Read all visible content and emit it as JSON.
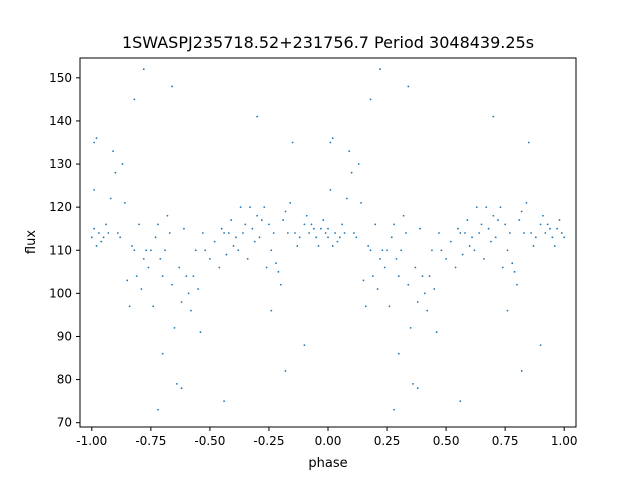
{
  "chart_data": {
    "type": "scatter",
    "title": "1SWASPJ235718.52+231756.7 Period 3048439.25s",
    "xlabel": "phase",
    "ylabel": "flux",
    "xlim": [
      -1.05,
      1.05
    ],
    "ylim": [
      69.0,
      154.6
    ],
    "xticks": [
      "-1.00",
      "-0.75",
      "-0.50",
      "-0.25",
      "0.00",
      "0.25",
      "0.50",
      "0.75",
      "1.00"
    ],
    "xtick_values": [
      -1.0,
      -0.75,
      -0.5,
      -0.25,
      0.0,
      0.25,
      0.5,
      0.75,
      1.0
    ],
    "yticks": [
      "70",
      "80",
      "90",
      "100",
      "110",
      "120",
      "130",
      "140",
      "150"
    ],
    "ytick_values": [
      70,
      80,
      90,
      100,
      110,
      120,
      130,
      140,
      150
    ],
    "grid": false,
    "series": [
      {
        "color": "#1f77b4",
        "points": [
          [
            -1.0,
            113
          ],
          [
            -0.99,
            115
          ],
          [
            -0.99,
            124
          ],
          [
            -0.99,
            135
          ],
          [
            -0.98,
            136
          ],
          [
            -0.98,
            111
          ],
          [
            -0.97,
            114
          ],
          [
            -0.96,
            112
          ],
          [
            -0.95,
            113
          ],
          [
            -0.94,
            116
          ],
          [
            -0.93,
            114
          ],
          [
            -0.92,
            122
          ],
          [
            -0.91,
            133
          ],
          [
            -0.9,
            128
          ],
          [
            -0.89,
            114
          ],
          [
            -0.88,
            113
          ],
          [
            -0.87,
            130
          ],
          [
            -0.86,
            121
          ],
          [
            -0.85,
            103
          ],
          [
            -0.84,
            97
          ],
          [
            -0.83,
            111
          ],
          [
            -0.82,
            110
          ],
          [
            -0.81,
            104
          ],
          [
            -0.8,
            116
          ],
          [
            -0.79,
            101
          ],
          [
            -0.78,
            108
          ],
          [
            -0.77,
            110
          ],
          [
            -0.76,
            106
          ],
          [
            -0.75,
            110
          ],
          [
            -0.74,
            97
          ],
          [
            -0.73,
            113
          ],
          [
            -0.72,
            116
          ],
          [
            -0.71,
            108
          ],
          [
            -0.7,
            104
          ],
          [
            -0.69,
            110
          ],
          [
            -0.68,
            118
          ],
          [
            -0.67,
            114
          ],
          [
            -0.66,
            102
          ],
          [
            -0.65,
            92
          ],
          [
            -0.64,
            79
          ],
          [
            -0.63,
            106
          ],
          [
            -0.62,
            98
          ],
          [
            -0.61,
            115
          ],
          [
            -0.6,
            104
          ],
          [
            -0.59,
            100
          ],
          [
            -0.58,
            96
          ],
          [
            -0.57,
            104
          ],
          [
            -0.56,
            110
          ],
          [
            -0.55,
            101
          ],
          [
            -0.54,
            91
          ],
          [
            -0.53,
            114
          ],
          [
            -0.52,
            110
          ],
          [
            -0.5,
            108
          ],
          [
            -0.48,
            112
          ],
          [
            -0.46,
            106
          ],
          [
            -0.45,
            115
          ],
          [
            -0.44,
            114
          ],
          [
            -0.43,
            109
          ],
          [
            -0.42,
            114
          ],
          [
            -0.41,
            117
          ],
          [
            -0.4,
            111
          ],
          [
            -0.39,
            113
          ],
          [
            -0.38,
            110
          ],
          [
            -0.37,
            120
          ],
          [
            -0.36,
            114
          ],
          [
            -0.35,
            116
          ],
          [
            -0.34,
            108
          ],
          [
            -0.33,
            120
          ],
          [
            -0.32,
            115
          ],
          [
            -0.31,
            112
          ],
          [
            -0.3,
            118
          ],
          [
            -0.29,
            113
          ],
          [
            -0.28,
            117
          ],
          [
            -0.27,
            120
          ],
          [
            -0.26,
            106
          ],
          [
            -0.25,
            116
          ],
          [
            -0.24,
            110
          ],
          [
            -0.23,
            114
          ],
          [
            -0.22,
            107
          ],
          [
            -0.21,
            105
          ],
          [
            -0.2,
            102
          ],
          [
            -0.19,
            117
          ],
          [
            -0.18,
            119
          ],
          [
            -0.17,
            114
          ],
          [
            -0.16,
            121
          ],
          [
            -0.15,
            135
          ],
          [
            -0.14,
            114
          ],
          [
            -0.13,
            111
          ],
          [
            -0.12,
            113
          ],
          [
            -0.1,
            116
          ],
          [
            -0.09,
            118
          ],
          [
            -0.08,
            114
          ],
          [
            -0.07,
            116
          ],
          [
            -0.06,
            115
          ],
          [
            -0.05,
            113
          ],
          [
            -0.04,
            111
          ],
          [
            -0.03,
            115
          ],
          [
            -0.02,
            117
          ],
          [
            -0.01,
            114
          ],
          [
            0.0,
            113
          ],
          [
            0.0,
            115
          ],
          [
            0.01,
            124
          ],
          [
            0.01,
            135
          ],
          [
            0.02,
            136
          ],
          [
            0.02,
            111
          ],
          [
            0.03,
            114
          ],
          [
            0.04,
            112
          ],
          [
            0.05,
            113
          ],
          [
            0.06,
            116
          ],
          [
            0.07,
            114
          ],
          [
            0.08,
            122
          ],
          [
            0.09,
            133
          ],
          [
            0.1,
            128
          ],
          [
            0.11,
            114
          ],
          [
            0.12,
            113
          ],
          [
            0.13,
            130
          ],
          [
            0.14,
            121
          ],
          [
            0.15,
            103
          ],
          [
            0.16,
            97
          ],
          [
            0.17,
            111
          ],
          [
            0.18,
            110
          ],
          [
            0.19,
            104
          ],
          [
            0.2,
            116
          ],
          [
            0.21,
            101
          ],
          [
            0.22,
            108
          ],
          [
            0.23,
            110
          ],
          [
            0.24,
            106
          ],
          [
            0.25,
            110
          ],
          [
            0.26,
            97
          ],
          [
            0.27,
            113
          ],
          [
            0.28,
            116
          ],
          [
            0.29,
            108
          ],
          [
            0.3,
            104
          ],
          [
            0.31,
            110
          ],
          [
            0.32,
            118
          ],
          [
            0.33,
            114
          ],
          [
            0.34,
            102
          ],
          [
            0.35,
            92
          ],
          [
            0.36,
            79
          ],
          [
            0.37,
            106
          ],
          [
            0.38,
            98
          ],
          [
            0.39,
            115
          ],
          [
            0.4,
            104
          ],
          [
            0.41,
            100
          ],
          [
            0.42,
            96
          ],
          [
            0.43,
            104
          ],
          [
            0.44,
            110
          ],
          [
            0.45,
            101
          ],
          [
            0.46,
            91
          ],
          [
            0.47,
            114
          ],
          [
            0.48,
            110
          ],
          [
            0.5,
            108
          ],
          [
            0.52,
            112
          ],
          [
            0.54,
            106
          ],
          [
            0.55,
            115
          ],
          [
            0.56,
            114
          ],
          [
            0.57,
            109
          ],
          [
            0.58,
            114
          ],
          [
            0.59,
            117
          ],
          [
            0.6,
            111
          ],
          [
            0.61,
            113
          ],
          [
            0.62,
            110
          ],
          [
            0.63,
            120
          ],
          [
            0.64,
            114
          ],
          [
            0.65,
            116
          ],
          [
            0.66,
            108
          ],
          [
            0.67,
            120
          ],
          [
            0.68,
            115
          ],
          [
            0.69,
            112
          ],
          [
            0.7,
            118
          ],
          [
            0.71,
            113
          ],
          [
            0.72,
            117
          ],
          [
            0.73,
            120
          ],
          [
            0.74,
            106
          ],
          [
            0.75,
            116
          ],
          [
            0.76,
            110
          ],
          [
            0.77,
            114
          ],
          [
            0.78,
            107
          ],
          [
            0.79,
            105
          ],
          [
            0.8,
            102
          ],
          [
            0.81,
            117
          ],
          [
            0.82,
            119
          ],
          [
            0.83,
            114
          ],
          [
            0.84,
            121
          ],
          [
            0.85,
            135
          ],
          [
            0.86,
            114
          ],
          [
            0.87,
            111
          ],
          [
            0.88,
            113
          ],
          [
            0.9,
            116
          ],
          [
            0.91,
            118
          ],
          [
            0.92,
            114
          ],
          [
            0.93,
            116
          ],
          [
            0.94,
            115
          ],
          [
            0.95,
            113
          ],
          [
            0.96,
            111
          ],
          [
            0.97,
            115
          ],
          [
            0.98,
            117
          ],
          [
            0.99,
            114
          ],
          [
            1.0,
            113
          ],
          [
            -0.82,
            145
          ],
          [
            -0.78,
            152
          ],
          [
            -0.66,
            148
          ],
          [
            0.18,
            145
          ],
          [
            0.22,
            152
          ],
          [
            0.34,
            148
          ],
          [
            -0.44,
            75
          ],
          [
            0.56,
            75
          ],
          [
            -0.62,
            78
          ],
          [
            0.38,
            78
          ],
          [
            -0.3,
            141
          ],
          [
            0.7,
            141
          ],
          [
            -0.18,
            82
          ],
          [
            0.82,
            82
          ],
          [
            -0.7,
            86
          ],
          [
            0.3,
            86
          ],
          [
            -0.1,
            88
          ],
          [
            0.9,
            88
          ],
          [
            -0.72,
            73
          ],
          [
            0.28,
            73
          ],
          [
            -0.24,
            96
          ],
          [
            0.76,
            96
          ]
        ]
      }
    ]
  }
}
